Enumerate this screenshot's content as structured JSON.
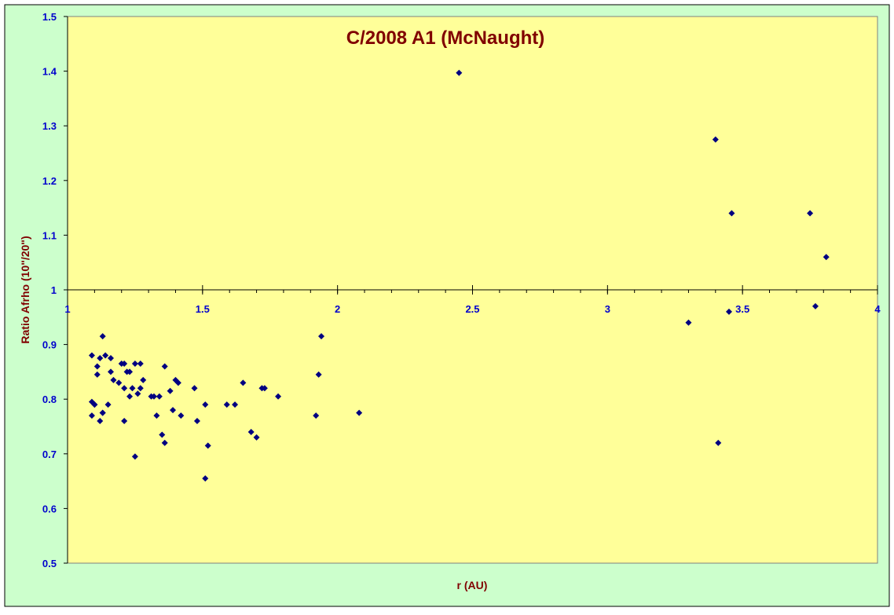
{
  "chart_data": {
    "type": "scatter",
    "title": "C/2008 A1 (McNaught)",
    "xlabel": "r (AU)",
    "ylabel": "Ratio Afrho (10\"/20\")",
    "xlim": [
      1,
      4
    ],
    "ylim": [
      0.5,
      1.5
    ],
    "x_axis_crosses_y": 1.0,
    "xticks": [
      1,
      1.5,
      2,
      2.5,
      3,
      3.5,
      4
    ],
    "xtick_labels": [
      "1",
      "1.5",
      "2",
      "2.5",
      "3",
      "3.5",
      "4"
    ],
    "yticks": [
      0.5,
      0.6,
      0.7,
      0.8,
      0.9,
      1.0,
      1.1,
      1.2,
      1.3,
      1.4,
      1.5
    ],
    "ytick_labels": [
      "0.5",
      "0.6",
      "0.7",
      "0.8",
      "0.9",
      "1",
      "1.1",
      "1.2",
      "1.3",
      "1.4",
      "1.5"
    ],
    "grid": false,
    "legend": "none",
    "colors": {
      "outer_background": "#ccffcc",
      "plot_background": "#ffff99",
      "marker": "#000080",
      "title": "#800000",
      "axis_title": "#800000",
      "tick_label": "#0000cc",
      "axis_line": "#000000"
    },
    "series": [
      {
        "marker": "diamond",
        "points": [
          [
            1.09,
            0.88
          ],
          [
            1.09,
            0.77
          ],
          [
            1.09,
            0.795
          ],
          [
            1.1,
            0.79
          ],
          [
            1.1,
            0.79
          ],
          [
            1.11,
            0.845
          ],
          [
            1.11,
            0.86
          ],
          [
            1.12,
            0.875
          ],
          [
            1.12,
            0.76
          ],
          [
            1.13,
            0.775
          ],
          [
            1.13,
            0.775
          ],
          [
            1.13,
            0.915
          ],
          [
            1.14,
            0.88
          ],
          [
            1.15,
            0.79
          ],
          [
            1.16,
            0.875
          ],
          [
            1.16,
            0.85
          ],
          [
            1.17,
            0.835
          ],
          [
            1.19,
            0.83
          ],
          [
            1.2,
            0.865
          ],
          [
            1.21,
            0.865
          ],
          [
            1.21,
            0.76
          ],
          [
            1.21,
            0.82
          ],
          [
            1.22,
            0.85
          ],
          [
            1.23,
            0.85
          ],
          [
            1.23,
            0.805
          ],
          [
            1.24,
            0.82
          ],
          [
            1.25,
            0.695
          ],
          [
            1.25,
            0.865
          ],
          [
            1.26,
            0.81
          ],
          [
            1.27,
            0.865
          ],
          [
            1.27,
            0.82
          ],
          [
            1.28,
            0.835
          ],
          [
            1.31,
            0.805
          ],
          [
            1.32,
            0.805
          ],
          [
            1.33,
            0.77
          ],
          [
            1.34,
            0.805
          ],
          [
            1.35,
            0.735
          ],
          [
            1.36,
            0.72
          ],
          [
            1.36,
            0.86
          ],
          [
            1.38,
            0.815
          ],
          [
            1.39,
            0.78
          ],
          [
            1.4,
            0.835
          ],
          [
            1.41,
            0.83
          ],
          [
            1.42,
            0.77
          ],
          [
            1.47,
            0.82
          ],
          [
            1.48,
            0.76
          ],
          [
            1.51,
            0.79
          ],
          [
            1.52,
            0.715
          ],
          [
            1.51,
            0.655
          ],
          [
            1.59,
            0.79
          ],
          [
            1.62,
            0.79
          ],
          [
            1.65,
            0.83
          ],
          [
            1.68,
            0.74
          ],
          [
            1.7,
            0.73
          ],
          [
            1.72,
            0.82
          ],
          [
            1.73,
            0.82
          ],
          [
            1.78,
            0.805
          ],
          [
            1.92,
            0.77
          ],
          [
            1.93,
            0.845
          ],
          [
            1.94,
            0.915
          ],
          [
            2.08,
            0.775
          ],
          [
            2.45,
            1.397
          ],
          [
            3.3,
            0.94
          ],
          [
            3.4,
            1.275
          ],
          [
            3.41,
            0.72
          ],
          [
            3.45,
            0.96
          ],
          [
            3.46,
            1.14
          ],
          [
            3.75,
            1.14
          ],
          [
            3.77,
            0.97
          ],
          [
            3.81,
            1.06
          ]
        ]
      }
    ]
  }
}
